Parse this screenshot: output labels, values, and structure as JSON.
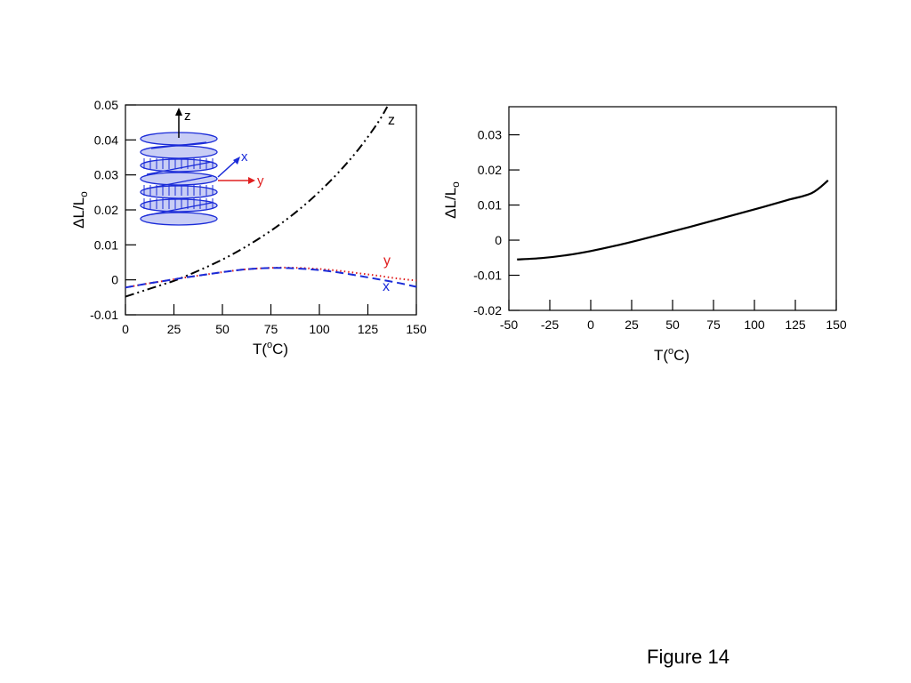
{
  "caption": "Figure 14",
  "chart_data": [
    {
      "type": "line",
      "xlabel": "T(oC)",
      "ylabel": "ΔL/Lo",
      "xlim": [
        0,
        150
      ],
      "ylim": [
        -0.01,
        0.05
      ],
      "xticks": [
        "0",
        "25",
        "50",
        "75",
        "100",
        "125",
        "150"
      ],
      "yticks": [
        "-0.01",
        "0",
        "0.01",
        "0.02",
        "0.03",
        "0.04",
        "0.05"
      ],
      "grid": false,
      "series": [
        {
          "name": "z",
          "color": "#000000",
          "style": "dash-dot-dot",
          "x": [
            0,
            10,
            20,
            25,
            30,
            40,
            50,
            60,
            70,
            80,
            90,
            100,
            110,
            120,
            130,
            135
          ],
          "y": [
            -0.0048,
            -0.003,
            -0.0012,
            -0.0003,
            0.0008,
            0.0032,
            0.0058,
            0.0088,
            0.0122,
            0.016,
            0.0203,
            0.0252,
            0.0308,
            0.0372,
            0.0448,
            0.0495
          ]
        },
        {
          "name": "y",
          "color": "#e02020",
          "style": "dotted",
          "x": [
            0,
            10,
            20,
            30,
            40,
            50,
            60,
            70,
            80,
            90,
            100,
            110,
            120,
            130,
            140,
            150
          ],
          "y": [
            -0.0022,
            -0.0012,
            -0.0003,
            0.0006,
            0.0014,
            0.0022,
            0.0029,
            0.0033,
            0.0035,
            0.0034,
            0.0031,
            0.0026,
            0.0019,
            0.0012,
            0.0004,
            -0.0002
          ]
        },
        {
          "name": "x",
          "color": "#1a2bd8",
          "style": "dashed",
          "x": [
            0,
            10,
            20,
            30,
            40,
            50,
            60,
            70,
            80,
            90,
            100,
            110,
            120,
            130,
            140,
            150
          ],
          "y": [
            -0.0022,
            -0.0012,
            -0.0003,
            0.0006,
            0.0014,
            0.0022,
            0.0029,
            0.0033,
            0.0034,
            0.0032,
            0.0028,
            0.0021,
            0.0012,
            0.0002,
            -0.0008,
            -0.002
          ]
        }
      ],
      "inset": {
        "axis_labels": [
          "z",
          "x",
          "y"
        ],
        "axis_colors": [
          "#000000",
          "#1a2bd8",
          "#e02020"
        ],
        "coil_color": "#1a2bd8",
        "coil_fill": "#c8cdf5"
      }
    },
    {
      "type": "line",
      "xlabel": "T(oC)",
      "ylabel": "ΔL/Lo",
      "xlim": [
        -50,
        150
      ],
      "ylim": [
        -0.02,
        0.038
      ],
      "xticks": [
        "-50",
        "-25",
        "0",
        "25",
        "50",
        "75",
        "100",
        "125",
        "150"
      ],
      "yticks": [
        "-0.02",
        "-0.01",
        "0",
        "0.01",
        "0.02",
        "0.03"
      ],
      "grid": false,
      "series": [
        {
          "color": "#000000",
          "style": "solid",
          "x": [
            -45,
            -30,
            -15,
            0,
            15,
            30,
            45,
            60,
            75,
            90,
            105,
            120,
            135,
            145
          ],
          "y": [
            -0.0055,
            -0.0051,
            -0.0043,
            -0.0031,
            -0.0016,
            0.0001,
            0.0019,
            0.0037,
            0.0056,
            0.0075,
            0.0094,
            0.0114,
            0.0134,
            0.017
          ]
        }
      ]
    }
  ]
}
